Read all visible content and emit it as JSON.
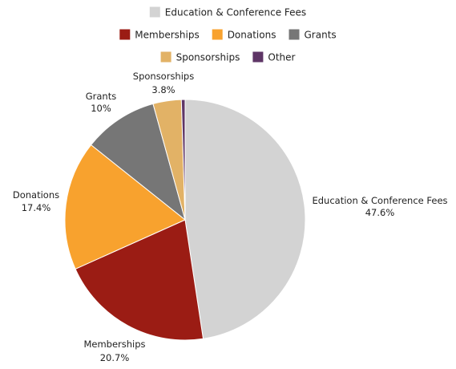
{
  "chart_data": {
    "type": "pie",
    "title": "",
    "legend_position": "top",
    "slices": [
      {
        "label": "Education & Conference Fees",
        "value": 47.6,
        "value_label": "47.6%",
        "color": "#d3d3d3"
      },
      {
        "label": "Memberships",
        "value": 20.7,
        "value_label": "20.7%",
        "color": "#9b1c14"
      },
      {
        "label": "Donations",
        "value": 17.4,
        "value_label": "17.4%",
        "color": "#f8a22e"
      },
      {
        "label": "Grants",
        "value": 10,
        "value_label": "10%",
        "color": "#767676"
      },
      {
        "label": "Sponsorships",
        "value": 3.8,
        "value_label": "3.8%",
        "color": "#e2b266"
      },
      {
        "label": "Other",
        "value": 0.5,
        "value_label": "",
        "color": "#5e3566"
      }
    ],
    "legend_rows": [
      [
        "Education & Conference Fees"
      ],
      [
        "Memberships",
        "Donations",
        "Grants"
      ],
      [
        "Sponsorships",
        "Other"
      ]
    ]
  }
}
